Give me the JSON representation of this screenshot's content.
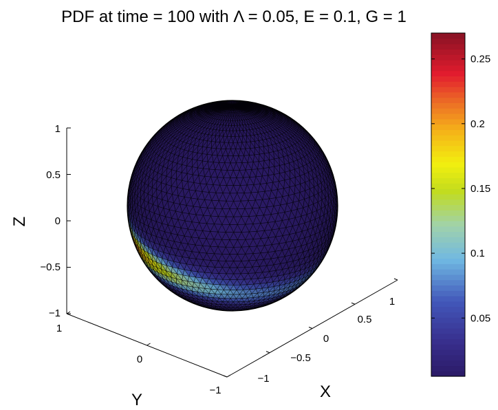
{
  "chart_data": {
    "type": "surface",
    "title": "PDF at time = 100 with  Λ = 0.05, E = 0.1, G = 1",
    "xlabel": "X",
    "ylabel": "Y",
    "zlabel": "Z",
    "x_ticks": [
      "−1",
      "−0.5",
      "0",
      "0.5",
      "1"
    ],
    "y_ticks": [
      "−1",
      "0",
      "1"
    ],
    "z_ticks": [
      "−1",
      "−0.5",
      "0",
      "0.5",
      "1"
    ],
    "xlim": [
      -1,
      1
    ],
    "ylim": [
      -1,
      1
    ],
    "zlim": [
      -1,
      1
    ],
    "colorbar": {
      "ticks": [
        "0.05",
        "0.1",
        "0.15",
        "0.2",
        "0.25"
      ],
      "tick_values": [
        0.05,
        0.1,
        0.15,
        0.2,
        0.25
      ],
      "min": 0.005,
      "max": 0.27,
      "colormap": "jet-like"
    },
    "surface": {
      "shape": "unit sphere",
      "value_min": 0.005,
      "value_max": 0.27,
      "band": "high density belt below the equator, peak ≈ 0.27 toward the front-left lower part"
    },
    "colors": {
      "low": "#2b1a66",
      "mid": "#7ec7e6",
      "high": "#f2ef0f",
      "peak": "#8c1224",
      "mesh": "#000000"
    }
  }
}
